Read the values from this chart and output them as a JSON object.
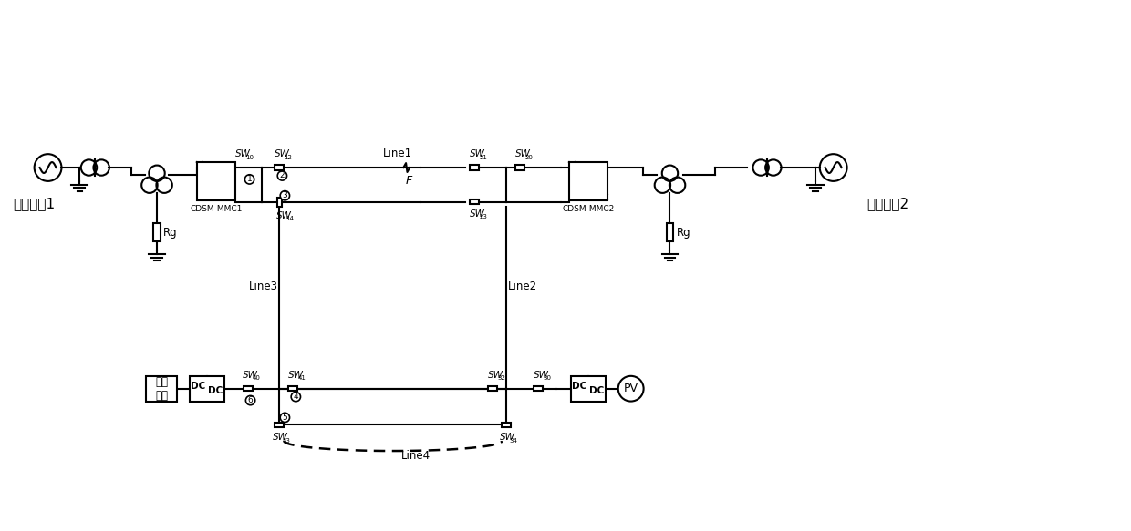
{
  "fig_width": 12.4,
  "fig_height": 5.83,
  "bg_color": "#ffffff",
  "line_color": "#000000",
  "lw": 1.5,
  "labels": {
    "ac_sys1": "交流系统1",
    "ac_sys2": "交流系统2",
    "dc_load": "直流\n负荷",
    "cdsm1": "CDSM-MMC1",
    "cdsm2": "CDSM-MMC2",
    "rg": "Rg",
    "line1": "Line1",
    "line2": "Line2",
    "line3": "Line3",
    "line4": "Line4",
    "fault": "F",
    "pv": "PV",
    "dc": "DC"
  }
}
